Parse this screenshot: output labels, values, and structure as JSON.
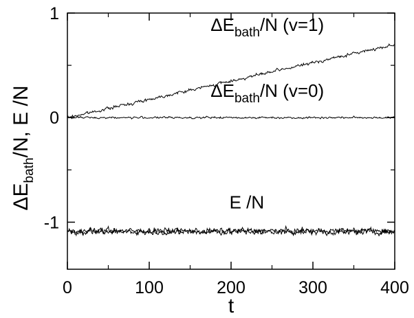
{
  "chart_data": {
    "type": "line",
    "xlabel": "t",
    "ylabel": {
      "prefix": "ΔE",
      "sub": "bath",
      "suffix": "/N,  E /N"
    },
    "xlim": [
      0,
      400
    ],
    "ylim": [
      -1.45,
      1.0
    ],
    "x_ticks": [
      0,
      100,
      200,
      300,
      400
    ],
    "x_tick_labels": [
      "0",
      "100",
      "200",
      "300",
      "400"
    ],
    "y_ticks": [
      1,
      0,
      -1
    ],
    "y_tick_labels": [
      "1",
      "0",
      "-1"
    ],
    "grid": false,
    "series": [
      {
        "x": [
          0,
          400
        ],
        "y": [
          0.0,
          0.7
        ],
        "noise": 0.012
      },
      {
        "x": [
          0,
          400
        ],
        "y": [
          0.0,
          0.0
        ],
        "noise": 0.008
      },
      {
        "x": [
          0,
          400
        ],
        "y": [
          -1.085,
          -1.085
        ],
        "noise": 0.025
      },
      {
        "x": [
          0,
          400
        ],
        "y": [
          -1.09,
          -1.09
        ],
        "noise": 0.025
      }
    ],
    "annotations": [
      {
        "prefix": "ΔE",
        "sub": "bath",
        "suffix": "/N (v=1)",
        "x": 175,
        "y": 0.83
      },
      {
        "prefix": "ΔE",
        "sub": "bath",
        "suffix": "/N (v=0)",
        "x": 175,
        "y": 0.2
      },
      {
        "prefix": "E /N",
        "sub": "",
        "suffix": "",
        "x": 198,
        "y": -0.87
      }
    ]
  }
}
